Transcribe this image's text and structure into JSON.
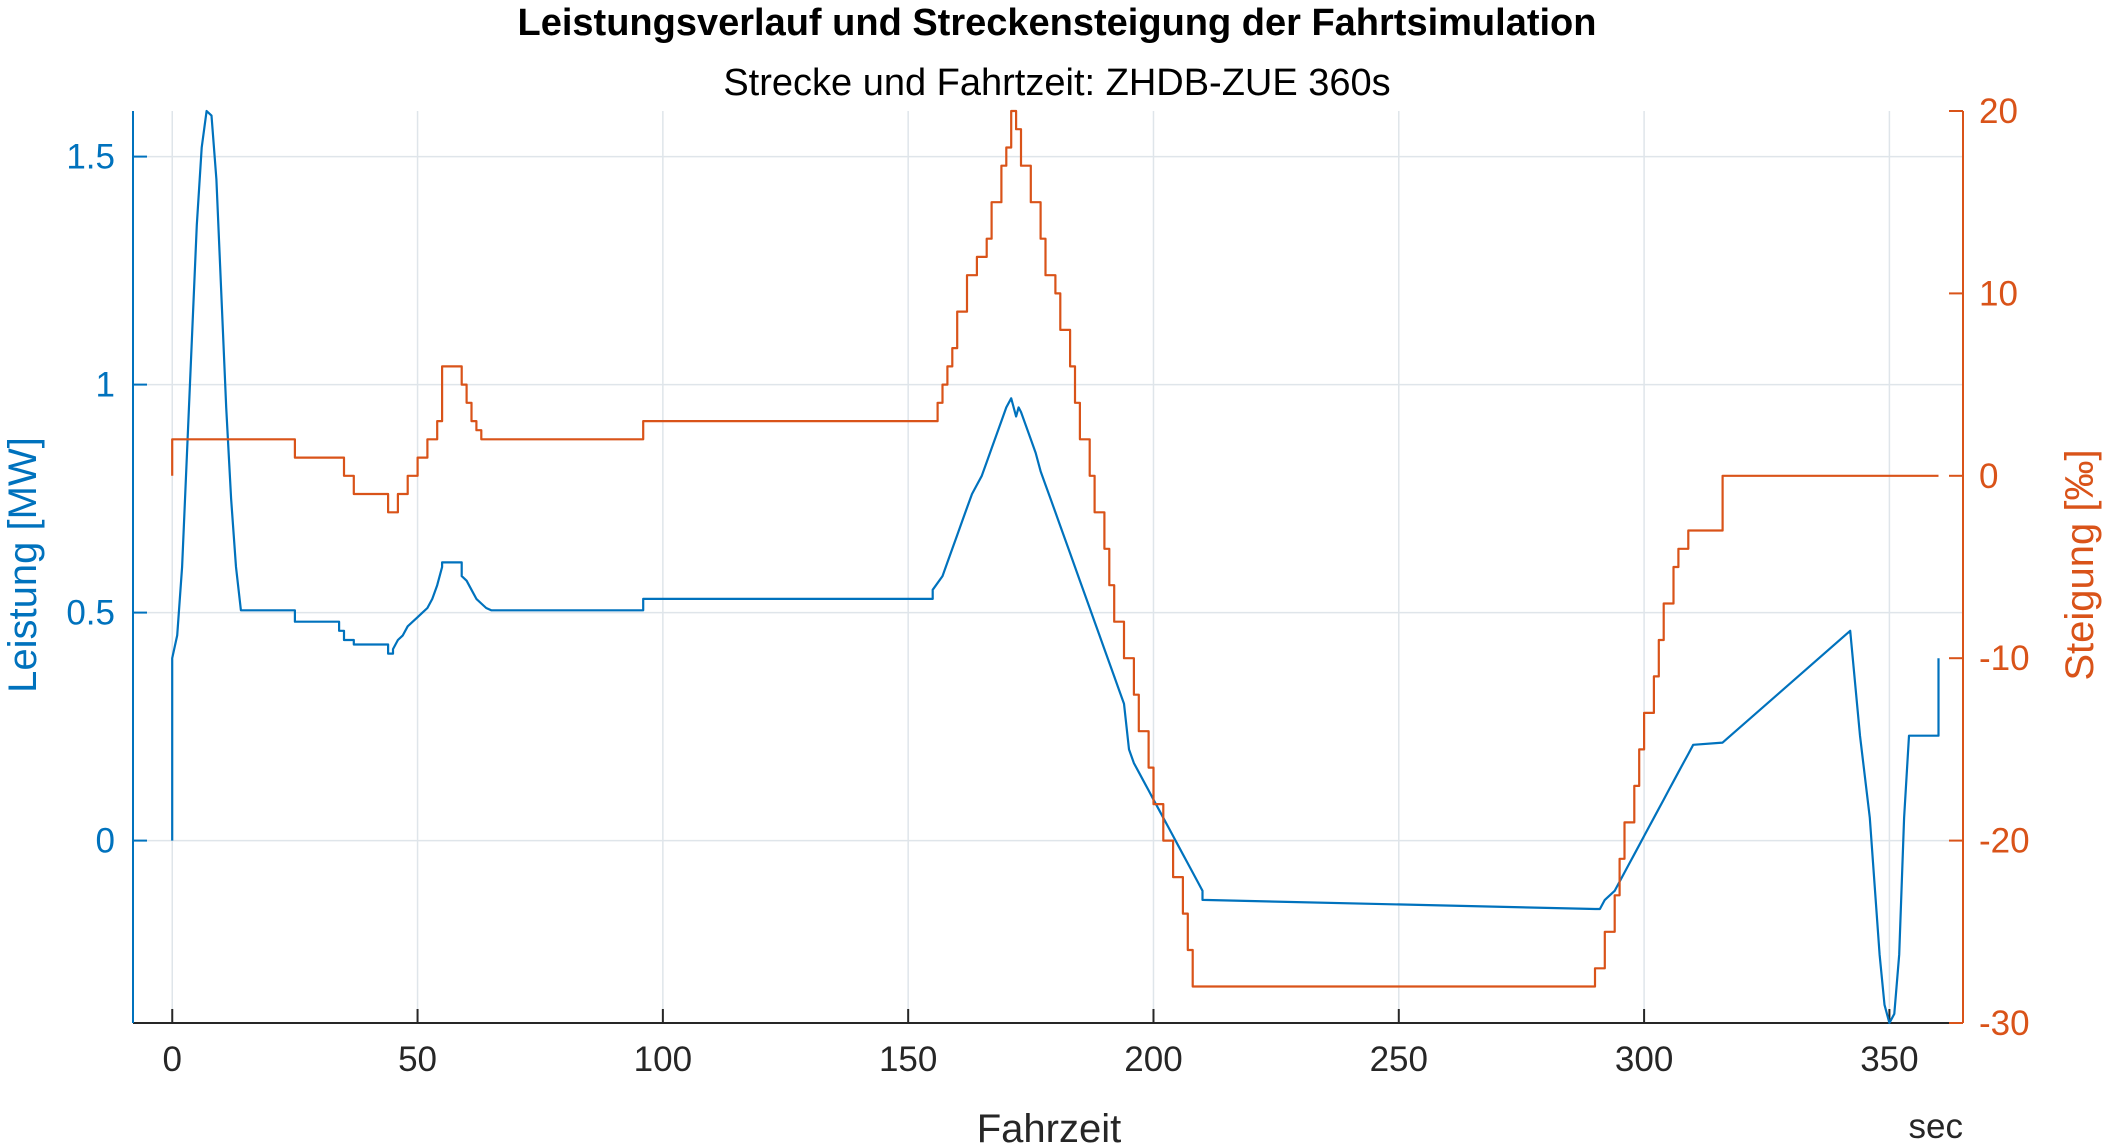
{
  "chart_data": {
    "type": "line",
    "title": "Leistungsverlauf und Streckensteigung der Fahrtsimulation",
    "subtitle": "Strecke und Fahrtzeit: ZHDB-ZUE 360s",
    "xlabel": "Fahrzeit",
    "x_unit": "sec",
    "ylabel_left": "Leistung [MW]",
    "ylabel_right": "Steigung [‰]",
    "xlim": [
      -8,
      365
    ],
    "ylim_left": [
      -0.4,
      1.6
    ],
    "ylim_right": [
      -30,
      20
    ],
    "x_ticks": [
      0,
      50,
      100,
      150,
      200,
      250,
      300,
      350
    ],
    "y_left_ticks": [
      0,
      0.5,
      1,
      1.5
    ],
    "y_left_tick_labels": [
      "0",
      "0.5",
      "1",
      "1.5"
    ],
    "y_right_ticks": [
      -30,
      -20,
      -10,
      0,
      10,
      20
    ],
    "y_right_tick_labels": [
      "-30",
      "-20",
      "-10",
      "0",
      "10",
      "20"
    ],
    "grid": true,
    "colors": {
      "left": "#0072BD",
      "right": "#D95319",
      "grid": "#dfe5ea",
      "axis": "#262626"
    },
    "series": [
      {
        "axis": "left",
        "x": [
          0,
          0,
          1,
          2,
          3,
          4,
          5,
          6,
          7,
          8,
          9,
          10,
          11,
          12,
          13,
          14,
          15,
          25,
          25,
          34,
          34,
          35,
          35,
          37,
          37,
          44,
          44,
          45,
          45,
          46,
          47,
          48,
          49,
          50,
          51,
          52,
          53,
          54,
          55,
          55,
          59,
          59,
          60,
          61,
          62,
          63,
          64,
          65,
          65,
          96,
          96,
          155,
          155,
          157,
          158,
          159,
          160,
          161,
          162,
          163,
          164,
          165,
          166,
          167,
          168,
          169,
          170,
          171,
          172,
          172.5,
          173,
          174,
          175,
          176,
          177,
          178,
          179,
          180,
          181,
          182,
          183,
          184,
          185,
          186,
          187,
          188,
          189,
          190,
          191,
          192,
          193,
          194,
          195,
          196,
          197,
          198,
          199,
          200,
          201,
          202,
          203,
          204,
          205,
          206,
          207,
          208,
          209,
          210,
          210,
          290,
          291,
          292,
          293,
          294,
          295,
          296,
          297,
          298,
          299,
          300,
          301,
          302,
          303,
          304,
          305,
          306,
          307,
          308,
          309,
          310,
          316,
          316,
          342,
          342,
          344,
          346,
          347,
          348,
          349,
          350,
          351,
          352,
          353,
          354,
          354,
          360,
          360
        ],
        "y": [
          0.0,
          0.4,
          0.45,
          0.6,
          0.85,
          1.1,
          1.35,
          1.52,
          1.6,
          1.59,
          1.45,
          1.2,
          0.95,
          0.75,
          0.6,
          0.505,
          0.505,
          0.505,
          0.48,
          0.48,
          0.46,
          0.46,
          0.44,
          0.44,
          0.43,
          0.43,
          0.41,
          0.41,
          0.42,
          0.44,
          0.45,
          0.47,
          0.48,
          0.49,
          0.5,
          0.51,
          0.53,
          0.56,
          0.6,
          0.61,
          0.61,
          0.58,
          0.57,
          0.55,
          0.53,
          0.52,
          0.51,
          0.505,
          0.505,
          0.505,
          0.53,
          0.53,
          0.55,
          0.58,
          0.61,
          0.64,
          0.67,
          0.7,
          0.73,
          0.76,
          0.78,
          0.8,
          0.83,
          0.86,
          0.89,
          0.92,
          0.95,
          0.97,
          0.93,
          0.95,
          0.94,
          0.91,
          0.88,
          0.85,
          0.81,
          0.78,
          0.75,
          0.72,
          0.69,
          0.66,
          0.63,
          0.6,
          0.57,
          0.54,
          0.51,
          0.48,
          0.45,
          0.42,
          0.39,
          0.36,
          0.33,
          0.3,
          0.2,
          0.17,
          0.15,
          0.13,
          0.11,
          0.09,
          0.07,
          0.05,
          0.03,
          0.01,
          -0.01,
          -0.03,
          -0.05,
          -0.07,
          -0.09,
          -0.11,
          -0.13,
          -0.15,
          -0.15,
          -0.13,
          -0.12,
          -0.11,
          -0.09,
          -0.07,
          -0.05,
          -0.03,
          -0.01,
          0.01,
          0.03,
          0.05,
          0.07,
          0.09,
          0.11,
          0.13,
          0.15,
          0.17,
          0.19,
          0.21,
          0.215,
          0.215,
          0.46,
          0.46,
          0.23,
          0.05,
          -0.1,
          -0.25,
          -0.36,
          -0.4,
          -0.38,
          -0.25,
          0.05,
          0.23,
          0.23,
          0.23,
          0.4
        ]
      },
      {
        "axis": "right",
        "x": [
          0,
          0,
          25,
          25,
          35,
          35,
          37,
          37,
          44,
          44,
          46,
          46,
          48,
          48,
          50,
          50,
          52,
          52,
          54,
          54,
          55,
          55,
          59,
          59,
          60,
          60,
          61,
          61,
          62,
          62,
          63,
          63,
          65,
          65,
          96,
          96,
          156,
          156,
          157,
          157,
          158,
          158,
          159,
          159,
          160,
          160,
          162,
          162,
          164,
          164,
          166,
          166,
          167,
          167,
          169,
          169,
          170,
          170,
          171,
          171,
          172,
          172,
          173,
          173,
          175,
          175,
          177,
          177,
          178,
          178,
          180,
          180,
          181,
          181,
          183,
          183,
          184,
          184,
          185,
          185,
          187,
          187,
          188,
          188,
          190,
          190,
          191,
          191,
          192,
          192,
          194,
          194,
          196,
          196,
          197,
          197,
          199,
          199,
          200,
          200,
          202,
          202,
          204,
          204,
          206,
          206,
          207,
          207,
          208,
          208,
          210,
          210,
          290,
          290,
          292,
          292,
          294,
          294,
          295,
          295,
          296,
          296,
          298,
          298,
          299,
          299,
          300,
          300,
          302,
          302,
          303,
          303,
          304,
          304,
          306,
          306,
          307,
          307,
          309,
          309,
          310,
          310,
          316,
          316,
          360
        ],
        "y": [
          0,
          2,
          2,
          1,
          1,
          0,
          0,
          -1,
          -1,
          -2,
          -2,
          -1,
          -1,
          0,
          0,
          1,
          1,
          2,
          2,
          3,
          3,
          6,
          6,
          5,
          5,
          4,
          4,
          3,
          3,
          2.5,
          2.5,
          2,
          2,
          2,
          2,
          3,
          3,
          4,
          4,
          5,
          5,
          6,
          6,
          7,
          7,
          9,
          9,
          11,
          11,
          12,
          12,
          13,
          13,
          15,
          15,
          17,
          17,
          18,
          18,
          20,
          20,
          19,
          19,
          17,
          17,
          15,
          15,
          13,
          13,
          11,
          11,
          10,
          10,
          8,
          8,
          6,
          6,
          4,
          4,
          2,
          2,
          0,
          0,
          -2,
          -2,
          -4,
          -4,
          -6,
          -6,
          -8,
          -8,
          -10,
          -10,
          -12,
          -12,
          -14,
          -14,
          -16,
          -16,
          -18,
          -18,
          -20,
          -20,
          -22,
          -22,
          -24,
          -24,
          -26,
          -26,
          -28,
          -28,
          -28,
          -28,
          -27,
          -27,
          -25,
          -25,
          -23,
          -23,
          -21,
          -21,
          -19,
          -19,
          -17,
          -17,
          -15,
          -15,
          -13,
          -13,
          -11,
          -11,
          -9,
          -9,
          -7,
          -7,
          -5,
          -5,
          -4,
          -4,
          -3,
          -3,
          -3,
          -3,
          0,
          0
        ]
      }
    ]
  }
}
